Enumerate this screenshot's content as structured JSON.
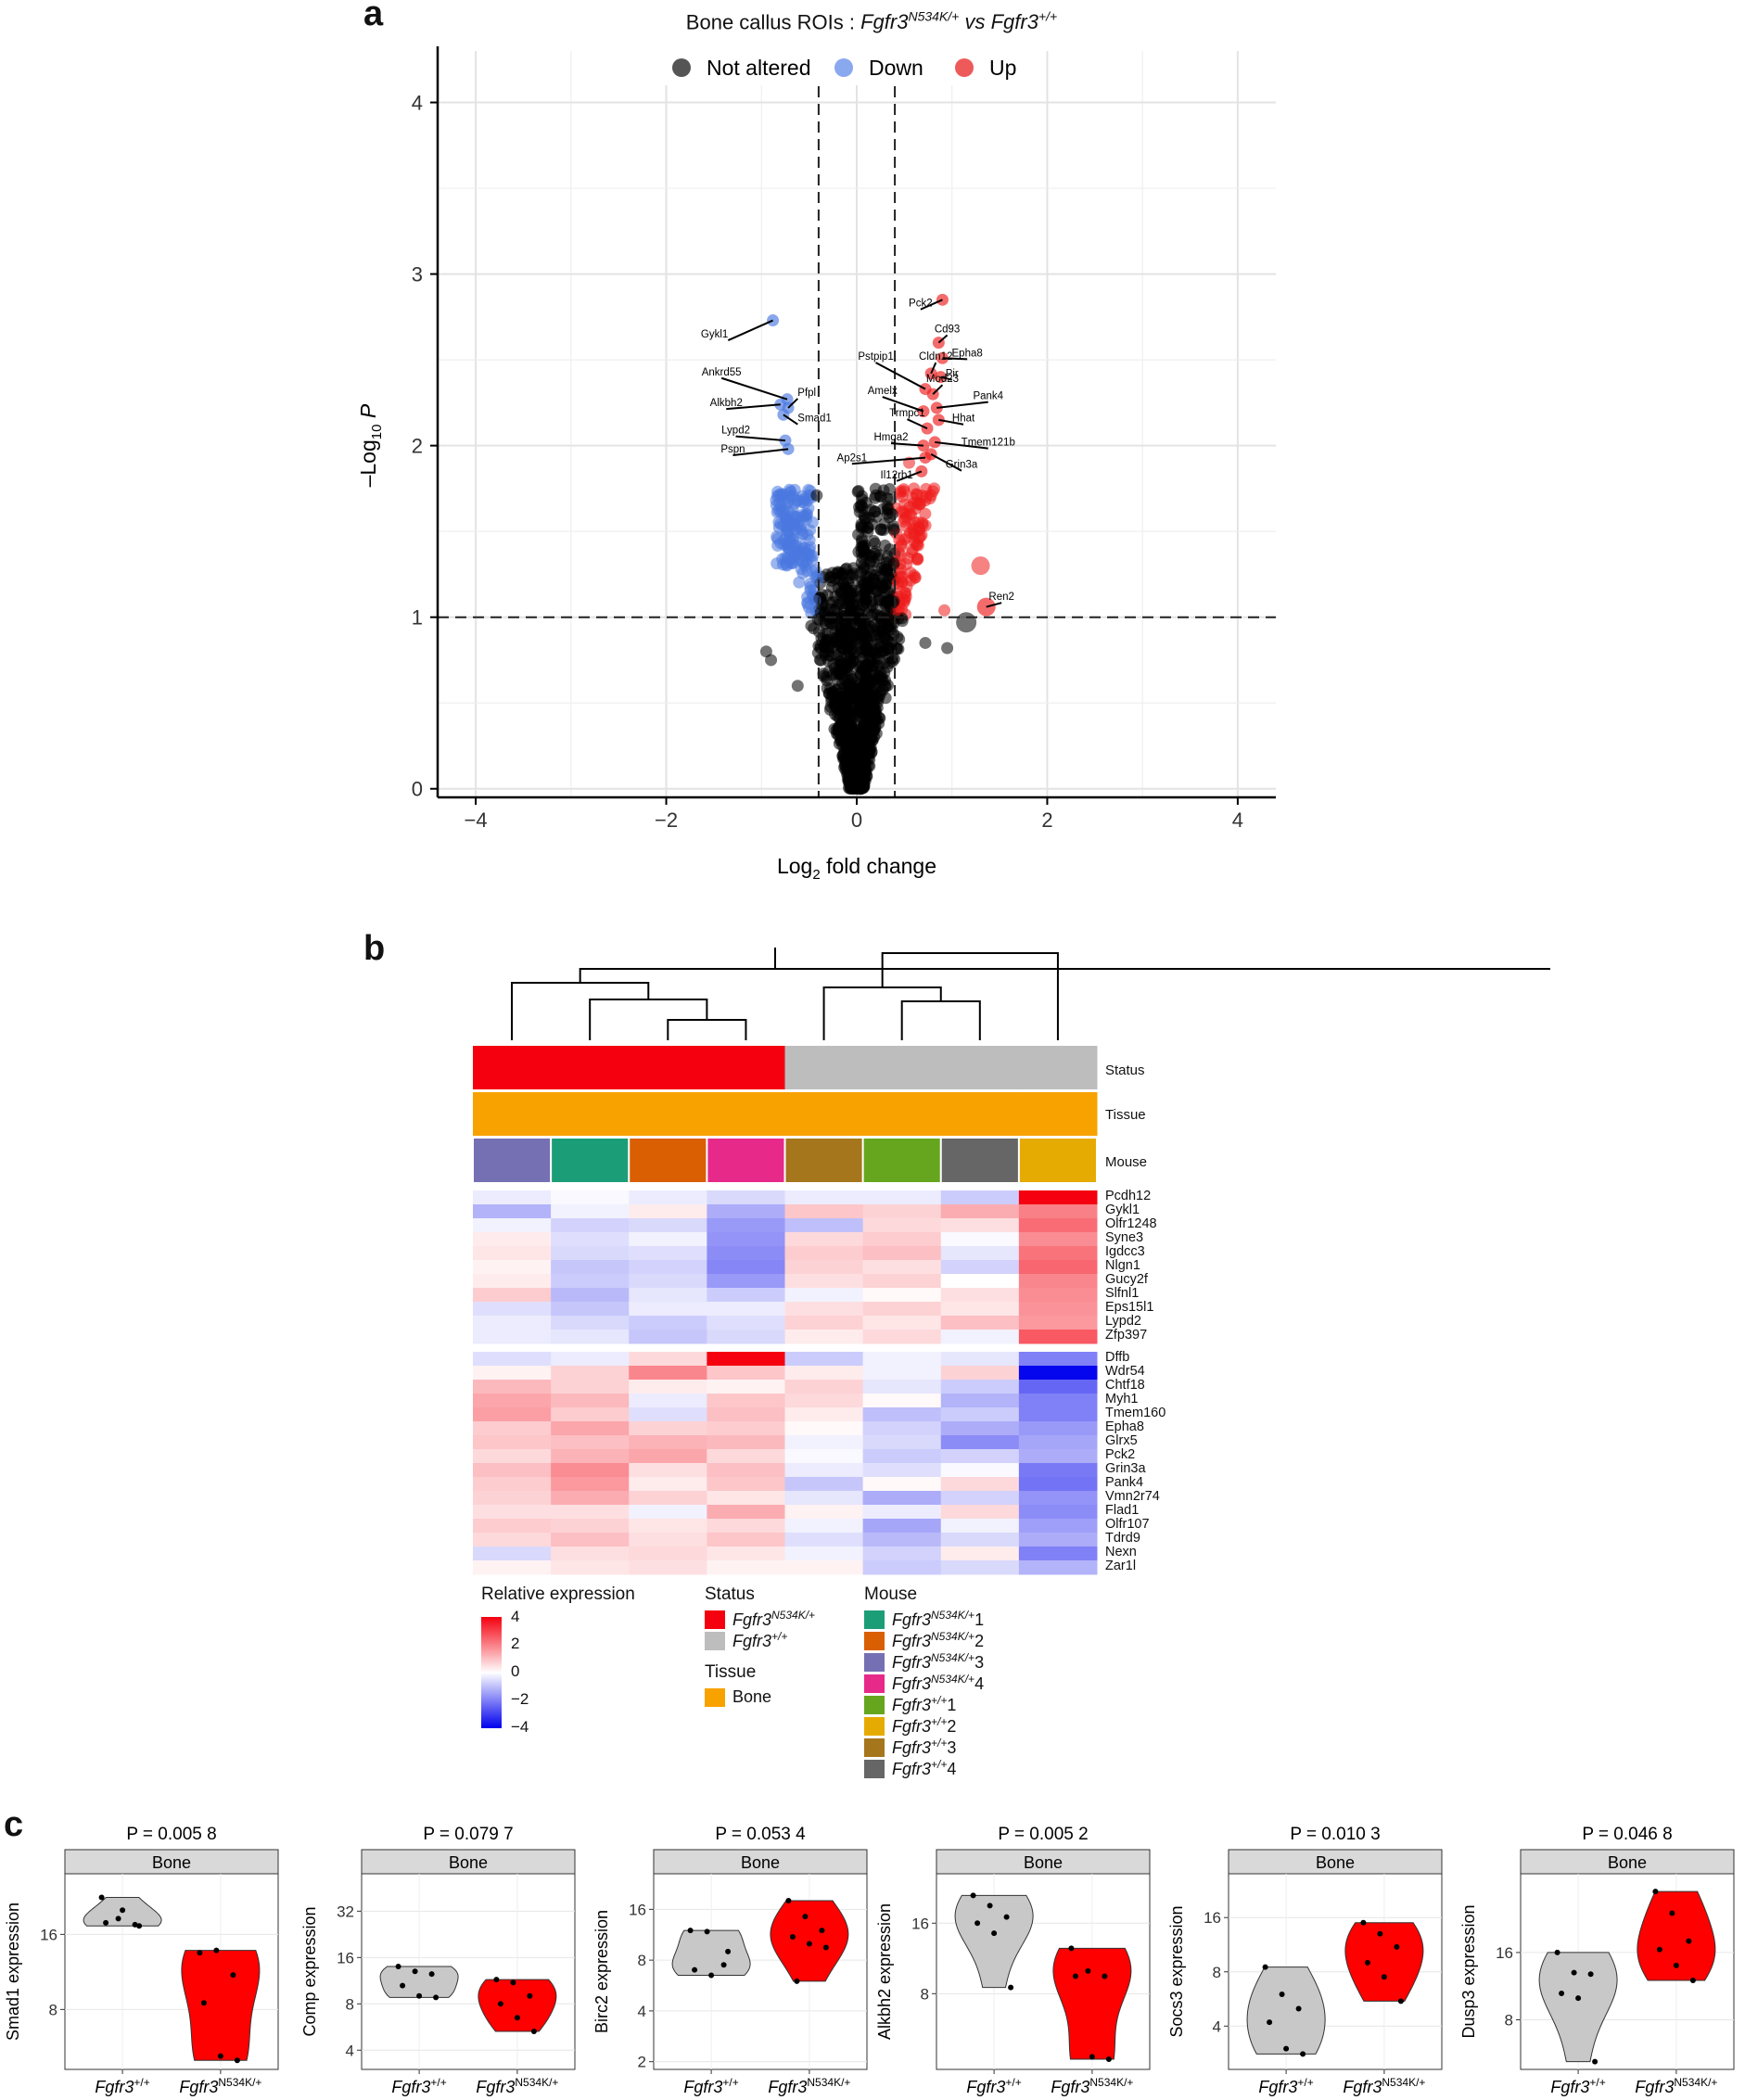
{
  "figure": {
    "panel_letters": [
      "a",
      "b",
      "c"
    ]
  },
  "panel_a": {
    "title_plain": "Bone callus ROIs : ",
    "title_gene1": "Fgfr3",
    "title_sup1": "N534K/+",
    "title_vs": " vs ",
    "title_gene2": "Fgfr3",
    "title_sup2": "+/+",
    "legend": [
      {
        "label": "Not altered",
        "color": "#555555"
      },
      {
        "label": "Down",
        "color": "#8aa8ee"
      },
      {
        "label": "Up",
        "color": "#ee5a5a"
      }
    ],
    "xlabel_main": "Log",
    "xlabel_sub": "2",
    "xlabel_rest": " fold change",
    "ylabel_main": "–Log",
    "ylabel_sub": "10",
    "ylabel_P": "P",
    "x_ticks": [
      "−4",
      "−2",
      "0",
      "2",
      "4"
    ],
    "y_ticks": [
      "0",
      "1",
      "2",
      "3",
      "4"
    ]
  },
  "chart_data": [
    {
      "type": "scatter",
      "title": "Bone callus ROIs : Fgfr3 N534K/+ vs Fgfr3 +/+",
      "xlabel": "Log2 fold change",
      "ylabel": "–Log10 P",
      "xlim": [
        -4.4,
        4.4
      ],
      "ylim": [
        -0.05,
        4.3
      ],
      "thresholds": {
        "fc": [
          -0.4,
          0.4
        ],
        "p": 1
      },
      "labeled_points": [
        {
          "label": "Gykl1",
          "x": -0.88,
          "y": 2.73,
          "group": "down"
        },
        {
          "label": "Ankrd55",
          "x": -0.73,
          "y": 2.27,
          "group": "down"
        },
        {
          "label": "Pfpl",
          "x": -0.72,
          "y": 2.22,
          "group": "down"
        },
        {
          "label": "Alkbh2",
          "x": -0.8,
          "y": 2.24,
          "group": "down"
        },
        {
          "label": "Smad1",
          "x": -0.77,
          "y": 2.18,
          "group": "down"
        },
        {
          "label": "Lypd2",
          "x": -0.75,
          "y": 2.03,
          "group": "down"
        },
        {
          "label": "Pspn",
          "x": -0.72,
          "y": 1.98,
          "group": "down"
        },
        {
          "label": "Pck2",
          "x": 0.9,
          "y": 2.85,
          "group": "up"
        },
        {
          "label": "Cd93",
          "x": 0.86,
          "y": 2.6,
          "group": "up"
        },
        {
          "label": "Epha8",
          "x": 0.9,
          "y": 2.51,
          "group": "up"
        },
        {
          "label": "Cldn12",
          "x": 0.78,
          "y": 2.42,
          "group": "up"
        },
        {
          "label": "Pstpip1",
          "x": 0.72,
          "y": 2.33,
          "group": "up"
        },
        {
          "label": "Pir",
          "x": 0.88,
          "y": 2.4,
          "group": "up"
        },
        {
          "label": "Mod23",
          "x": 0.8,
          "y": 2.3,
          "group": "up"
        },
        {
          "label": "Pank4",
          "x": 0.84,
          "y": 2.22,
          "group": "up"
        },
        {
          "label": "Amelx",
          "x": 0.7,
          "y": 2.2,
          "group": "up"
        },
        {
          "label": "Hhat",
          "x": 0.86,
          "y": 2.15,
          "group": "up"
        },
        {
          "label": "Trmpc1",
          "x": 0.74,
          "y": 2.1,
          "group": "up"
        },
        {
          "label": "Tmem121b",
          "x": 0.82,
          "y": 2.02,
          "group": "up"
        },
        {
          "label": "Hmga2",
          "x": 0.7,
          "y": 2.0,
          "group": "up"
        },
        {
          "label": "Grin3a",
          "x": 0.78,
          "y": 1.95,
          "group": "up"
        },
        {
          "label": "Ap2s1",
          "x": 0.72,
          "y": 1.93,
          "group": "up"
        },
        {
          "label": "Il12rb1",
          "x": 0.68,
          "y": 1.85,
          "group": "up"
        },
        {
          "label": "Ren2",
          "x": 1.36,
          "y": 1.06,
          "group": "up"
        }
      ]
    },
    {
      "type": "heatmap",
      "title": "Relative expression",
      "columns": [
        "Fgfr3 N534K/+ 3",
        "Fgfr3 N534K/+ 1",
        "Fgfr3 N534K/+ 2",
        "Fgfr3 N534K/+ 4",
        "Fgfr3 +/+ 3",
        "Fgfr3 +/+ 1",
        "Fgfr3 +/+ 4",
        "Fgfr3 +/+ 2"
      ],
      "status": [
        "N534K",
        "N534K",
        "N534K",
        "N534K",
        "WT",
        "WT",
        "WT",
        "WT"
      ],
      "tissue": [
        "Bone",
        "Bone",
        "Bone",
        "Bone",
        "Bone",
        "Bone",
        "Bone",
        "Bone"
      ],
      "scale": [
        -4,
        4
      ],
      "rows_top": [
        "Pcdh12",
        "Gykl1",
        "Olfr1248",
        "Syne3",
        "Igdcc3",
        "Nlgn1",
        "Gucy2f",
        "Slfnl1",
        "Eps15l1",
        "Lypd2",
        "Zfp397"
      ],
      "rows_bottom": [
        "Dffb",
        "Wdr54",
        "Chtf18",
        "Myh1",
        "Tmem160",
        "Epha8",
        "Glrx5",
        "Pck2",
        "Grin3a",
        "Pank4",
        "Vmn2r74",
        "Flad1",
        "Olfr107",
        "Tdrd9",
        "Nexn",
        "Zar1l"
      ],
      "values_top": [
        [
          -0.3,
          -0.1,
          -0.3,
          -0.6,
          -0.3,
          -0.3,
          -0.8,
          4.0
        ],
        [
          -1.2,
          -0.2,
          0.3,
          -1.3,
          0.9,
          0.7,
          1.3,
          2.0
        ],
        [
          -0.2,
          -0.7,
          -0.6,
          -1.6,
          -1.0,
          0.6,
          0.5,
          2.3
        ],
        [
          0.3,
          -0.5,
          -0.2,
          -1.7,
          0.6,
          0.8,
          -0.1,
          1.8
        ],
        [
          0.4,
          -0.6,
          -0.5,
          -1.8,
          0.8,
          1.0,
          -0.4,
          2.2
        ],
        [
          0.2,
          -0.9,
          -0.7,
          -1.9,
          0.7,
          0.5,
          -0.7,
          2.4
        ],
        [
          0.3,
          -0.8,
          -0.6,
          -1.6,
          0.5,
          0.7,
          0.0,
          1.9
        ],
        [
          0.8,
          -1.1,
          -0.4,
          -0.8,
          -0.2,
          0.1,
          0.5,
          1.8
        ],
        [
          -0.5,
          -0.9,
          -0.3,
          -0.3,
          0.5,
          0.7,
          0.4,
          1.7
        ],
        [
          -0.3,
          -0.6,
          -0.8,
          -0.5,
          0.7,
          0.4,
          1.0,
          1.6
        ],
        [
          -0.3,
          -0.4,
          -0.9,
          -0.6,
          0.3,
          0.6,
          -0.2,
          2.6
        ]
      ],
      "values_bottom": [
        [
          -0.5,
          -0.3,
          0.6,
          4.0,
          -0.8,
          -0.2,
          -0.4,
          -2.0
        ],
        [
          0.2,
          0.7,
          1.9,
          0.9,
          0.3,
          -0.2,
          0.7,
          -3.9
        ],
        [
          1.1,
          0.7,
          0.3,
          0.2,
          0.7,
          -0.4,
          -0.8,
          -2.4
        ],
        [
          1.4,
          1.1,
          -0.3,
          0.9,
          0.6,
          0.1,
          -1.2,
          -2.0
        ],
        [
          1.5,
          0.8,
          -0.5,
          1.0,
          0.3,
          -1.0,
          -0.8,
          -2.0
        ],
        [
          0.8,
          1.4,
          0.7,
          0.8,
          0.1,
          -0.7,
          -1.3,
          -1.6
        ],
        [
          0.9,
          1.0,
          1.2,
          1.1,
          -0.2,
          -0.6,
          -1.8,
          -1.4
        ],
        [
          0.6,
          1.2,
          1.4,
          0.6,
          -0.1,
          -0.8,
          -0.7,
          -1.3
        ],
        [
          1.0,
          1.8,
          0.5,
          1.0,
          -0.3,
          -0.5,
          -0.1,
          -2.1
        ],
        [
          0.8,
          1.6,
          0.3,
          0.9,
          -0.9,
          0.1,
          0.6,
          -2.2
        ],
        [
          0.7,
          1.3,
          0.7,
          0.4,
          -0.4,
          -1.3,
          -0.7,
          -1.7
        ],
        [
          0.5,
          0.5,
          -0.2,
          1.3,
          0.2,
          -0.3,
          0.6,
          -1.8
        ],
        [
          0.8,
          0.7,
          0.4,
          0.6,
          -0.2,
          -1.4,
          -0.2,
          -1.5
        ],
        [
          0.6,
          1.0,
          0.5,
          0.9,
          -0.5,
          -1.1,
          -0.6,
          -1.3
        ],
        [
          -0.6,
          0.5,
          0.6,
          0.4,
          -0.2,
          -0.7,
          0.3,
          -2.0
        ],
        [
          0.2,
          0.4,
          0.5,
          0.2,
          0.2,
          -0.8,
          -0.6,
          -1.2
        ]
      ]
    },
    {
      "type": "violin",
      "panels": [
        {
          "gene": "Smad1",
          "p": "P = 0.005 8",
          "ylabel": "Smad1 expression",
          "yticks": [
            8,
            16
          ],
          "yscale": "log2",
          "ylim": [
            4.6,
            28
          ],
          "wt": [
            22.5,
            18.5,
            17.5,
            17.8,
            20.0,
            17.3
          ],
          "mut": [
            13.5,
            13.8,
            11.0,
            8.5,
            5.2,
            5.0
          ]
        },
        {
          "gene": "Comp",
          "p": "P = 0.079 7",
          "ylabel": "Comp expression",
          "yticks": [
            4,
            8,
            16,
            32
          ],
          "yscale": "log2",
          "ylim": [
            3,
            56
          ],
          "wt": [
            14.0,
            13.0,
            12.5,
            10.5,
            9.0,
            8.8
          ],
          "mut": [
            11.5,
            11.0,
            9.0,
            8.0,
            6.5,
            5.3
          ]
        },
        {
          "gene": "Birc2",
          "p": "P = 0.053 4",
          "ylabel": "Birc2 expression",
          "yticks": [
            2,
            4,
            8,
            16
          ],
          "yscale": "log2",
          "ylim": [
            1.8,
            26
          ],
          "wt": [
            12.0,
            11.8,
            7.5,
            7.0,
            6.5,
            9.0
          ],
          "mut": [
            18.0,
            14.5,
            12.0,
            11.0,
            10.0,
            9.5,
            6.0
          ]
        },
        {
          "gene": "Alkbh2",
          "p": "P = 0.005 2",
          "ylabel": "Alkbh2 expression",
          "yticks": [
            8,
            16
          ],
          "yscale": "log2",
          "ylim": [
            3.8,
            26
          ],
          "wt": [
            21.0,
            19.0,
            17.0,
            16.0,
            14.5,
            8.5
          ],
          "mut": [
            12.5,
            10.0,
            9.5,
            9.5,
            4.3,
            4.2
          ]
        },
        {
          "gene": "Socs3",
          "p": "P = 0.010 3",
          "ylabel": "Socs3 expression",
          "yticks": [
            4,
            8,
            16
          ],
          "yscale": "log2",
          "ylim": [
            2.3,
            28
          ],
          "wt": [
            8.5,
            6.0,
            5.0,
            4.2,
            3.0,
            2.8
          ],
          "mut": [
            15.0,
            13.0,
            11.0,
            9.0,
            7.5,
            5.5
          ]
        },
        {
          "gene": "Dusp3",
          "p": "P = 0.046 8",
          "ylabel": "Dusp3 expression",
          "yticks": [
            8,
            16
          ],
          "yscale": "log2",
          "ylim": [
            4.8,
            36
          ],
          "wt": [
            16.0,
            13.0,
            12.8,
            10.5,
            10.0,
            5.2
          ],
          "mut": [
            30.0,
            24.0,
            18.0,
            16.5,
            14.0,
            12.0
          ]
        }
      ]
    }
  ],
  "panel_b": {
    "annotation_labels": [
      "Status",
      "Tissue",
      "Mouse"
    ],
    "status_colors": {
      "N534K": "#f4000f",
      "WT": "#bdbdbd"
    },
    "tissue_color": "#f8a200",
    "mouse_colors": [
      "#7570b3",
      "#1b9e77",
      "#d95f02",
      "#e7298a",
      "#a6761d",
      "#66a61e",
      "#666666",
      "#e6ab02"
    ],
    "legend_expr_title": "Relative expression",
    "legend_expr_ticks": [
      "4",
      "2",
      "0",
      "−2",
      "−4"
    ],
    "legend_status_title": "Status",
    "legend_status": [
      {
        "gene": "Fgfr3",
        "sup": "N534K/+",
        "color": "#f4000f"
      },
      {
        "gene": "Fgfr3",
        "sup": "+/+",
        "color": "#bdbdbd"
      }
    ],
    "legend_tissue_title": "Tissue",
    "legend_tissue": [
      {
        "label": "Bone",
        "color": "#f8a200"
      }
    ],
    "legend_mouse_title": "Mouse",
    "legend_mouse": [
      {
        "gene": "Fgfr3",
        "sup": "N534K/+",
        "num": "1",
        "color": "#1b9e77"
      },
      {
        "gene": "Fgfr3",
        "sup": "N534K/+",
        "num": "2",
        "color": "#d95f02"
      },
      {
        "gene": "Fgfr3",
        "sup": "N534K/+",
        "num": "3",
        "color": "#7570b3"
      },
      {
        "gene": "Fgfr3",
        "sup": "N534K/+",
        "num": "4",
        "color": "#e7298a"
      },
      {
        "gene": "Fgfr3",
        "sup": "+/+",
        "num": "1",
        "color": "#66a61e"
      },
      {
        "gene": "Fgfr3",
        "sup": "+/+",
        "num": "2",
        "color": "#e6ab02"
      },
      {
        "gene": "Fgfr3",
        "sup": "+/+",
        "num": "3",
        "color": "#a6761d"
      },
      {
        "gene": "Fgfr3",
        "sup": "+/+",
        "num": "4",
        "color": "#666666"
      }
    ]
  },
  "panel_c": {
    "strip_label": "Bone",
    "x_gene": "Fgfr3",
    "x_sup_wt": "+/+",
    "x_sup_mut": "N534K/+",
    "wt_fill": "#c8c8c8",
    "mut_fill": "#ff0000"
  }
}
